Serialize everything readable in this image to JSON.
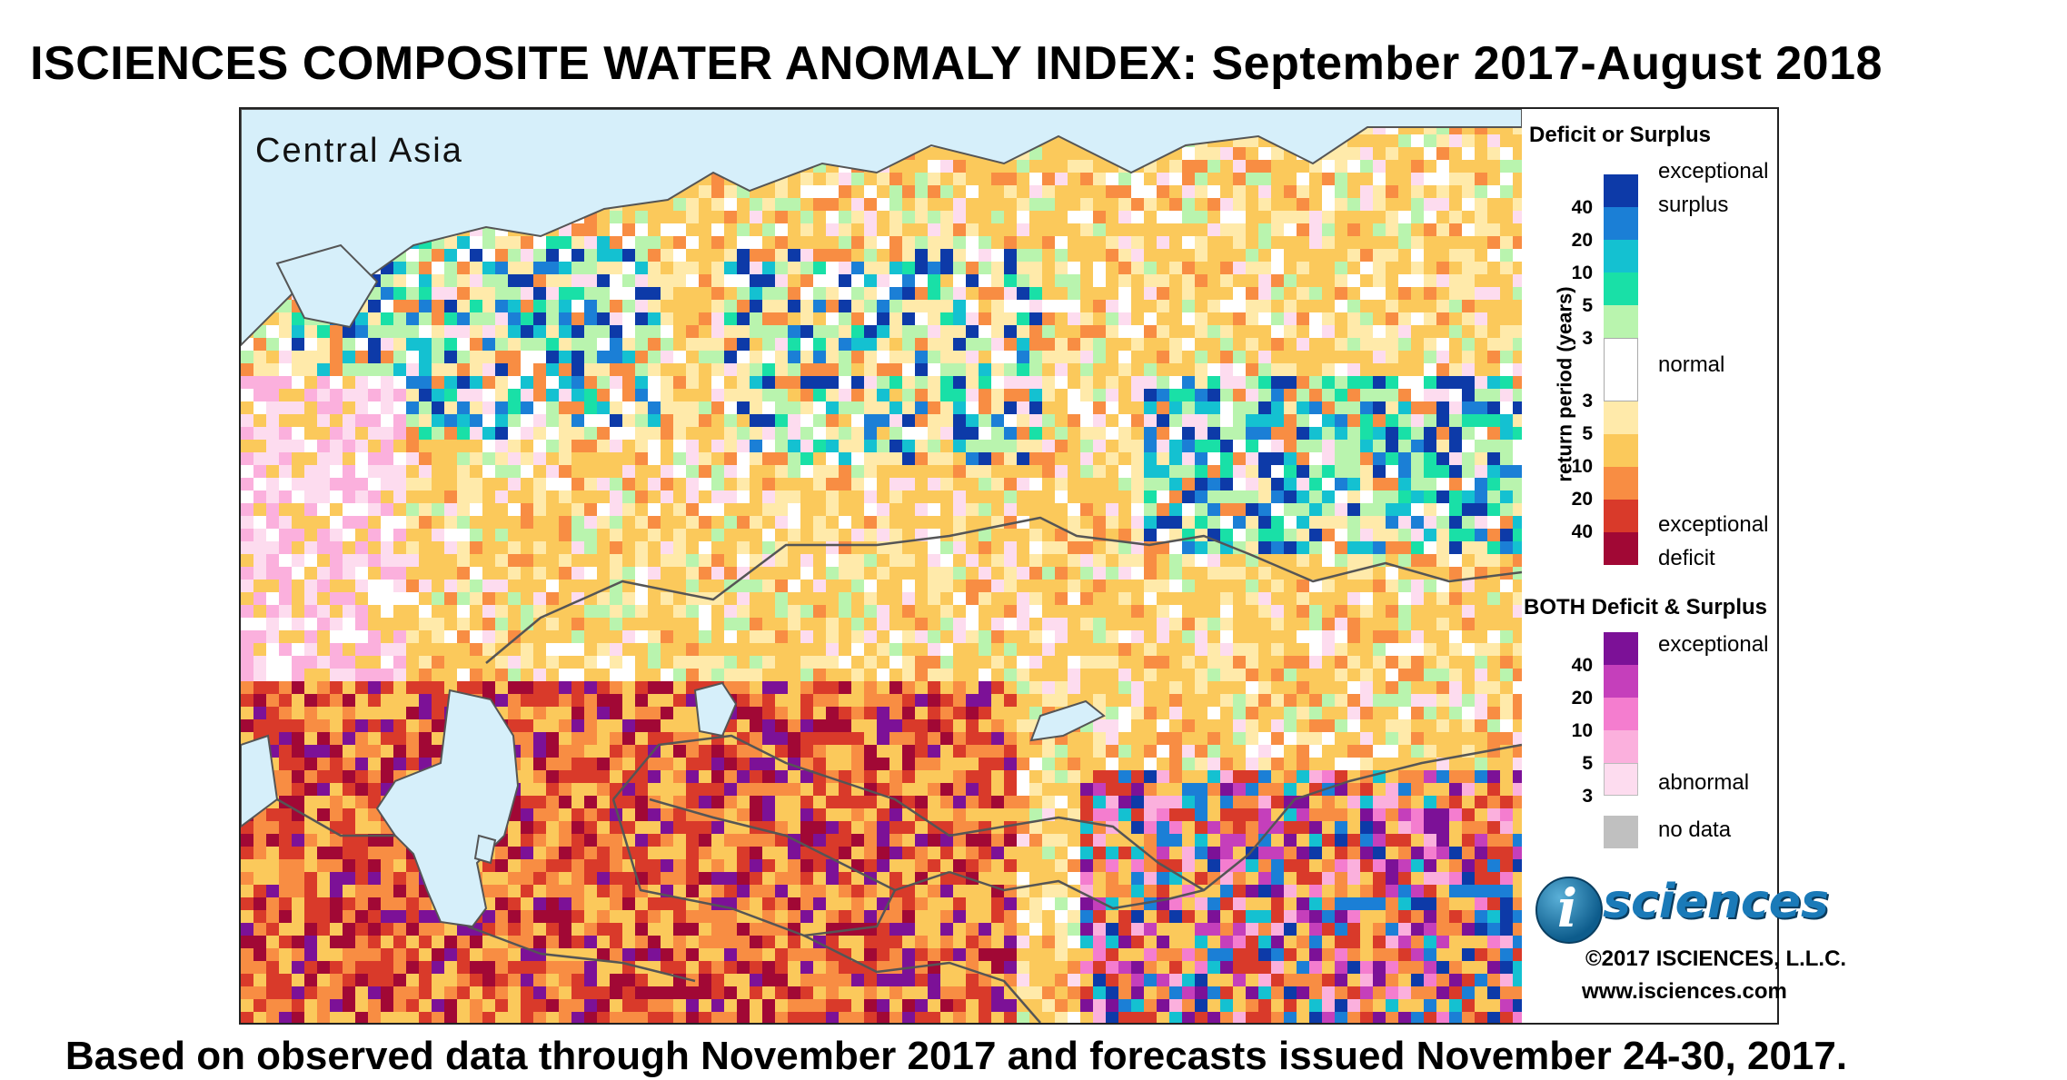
{
  "title": "ISCIENCES COMPOSITE WATER ANOMALY INDEX: September 2017-August 2018",
  "footer": "Based on observed data through November 2017 and forecasts issued November 24-30, 2017.",
  "map": {
    "region_label": "Central Asia",
    "colors": {
      "water": "#d6effa",
      "boundary": "#555555",
      "no_data": "#c0c0c0"
    }
  },
  "legend": {
    "deficit_surplus": {
      "heading": "Deficit or Surplus",
      "axis_label": "return period (years)",
      "surplus_ticks": [
        "40",
        "20",
        "10",
        "5",
        "3"
      ],
      "deficit_ticks": [
        "3",
        "5",
        "10",
        "20",
        "40"
      ],
      "surplus_colors": [
        "#0d3aa8",
        "#1b7fd6",
        "#14c1d1",
        "#19e0a7",
        "#b9f4ae"
      ],
      "normal_color": "#ffffff",
      "deficit_colors": [
        "#ffeaaa",
        "#fbc95b",
        "#f88d43",
        "#d93a2a",
        "#a10835"
      ],
      "label_surplus_top": "exceptional",
      "label_surplus_bottom": "surplus",
      "label_normal": "normal",
      "label_deficit_top": "exceptional",
      "label_deficit_bottom": "deficit"
    },
    "both": {
      "heading": "BOTH Deficit & Surplus",
      "ticks": [
        "40",
        "20",
        "10",
        "5",
        "3"
      ],
      "colors": [
        "#7c1197",
        "#c53fbb",
        "#f47dcf",
        "#fbb0dd",
        "#fddcef"
      ],
      "label_top": "exceptional",
      "label_bottom": "abnormal"
    },
    "no_data_label": "no data"
  },
  "branding": {
    "logo_letter": "i",
    "logo_text": "sciences",
    "copyright": "©2017 ISCIENCES, L.L.C.",
    "url": "www.isciences.com"
  }
}
